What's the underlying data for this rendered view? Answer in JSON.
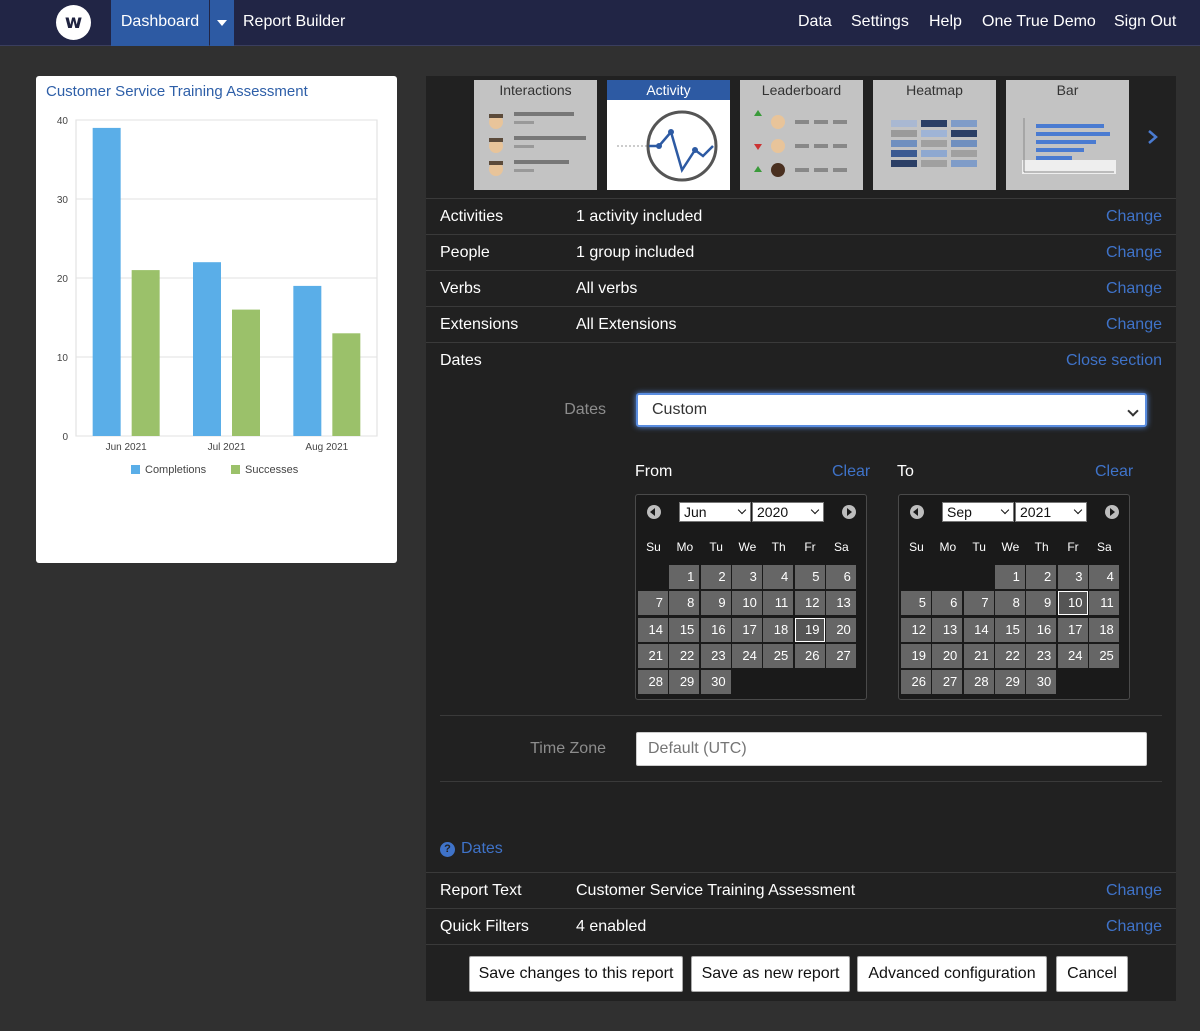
{
  "nav": {
    "logo_letter": "w",
    "dashboard": "Dashboard",
    "report_builder": "Report Builder",
    "right": [
      "Data",
      "Settings",
      "Help",
      "One True Demo",
      "Sign Out"
    ]
  },
  "card": {
    "title": "Customer Service Training Assessment"
  },
  "chart_data": {
    "type": "bar",
    "categories": [
      "Jun 2021",
      "Jul 2021",
      "Aug 2021"
    ],
    "series": [
      {
        "name": "Completions",
        "values": [
          39,
          22,
          19
        ],
        "color": "#5aaee8"
      },
      {
        "name": "Successes",
        "values": [
          21,
          16,
          13
        ],
        "color": "#9bc16a"
      }
    ],
    "ylim": [
      0,
      40
    ],
    "yticks": [
      0,
      10,
      20,
      30,
      40
    ],
    "grid": true,
    "legend": "bottom"
  },
  "thumbs": [
    {
      "label": "Interactions",
      "icon": "interactions-thumb",
      "active": false
    },
    {
      "label": "Activity",
      "icon": "activity-thumb",
      "active": true
    },
    {
      "label": "Leaderboard",
      "icon": "leaderboard-thumb",
      "active": false
    },
    {
      "label": "Heatmap",
      "icon": "heatmap-thumb",
      "active": false
    },
    {
      "label": "Bar",
      "icon": "bar-thumb",
      "active": false
    }
  ],
  "rows": {
    "activities": {
      "label": "Activities",
      "value": "1 activity included",
      "action": "Change"
    },
    "people": {
      "label": "People",
      "value": "1 group included",
      "action": "Change"
    },
    "verbs": {
      "label": "Verbs",
      "value": "All verbs",
      "action": "Change"
    },
    "extensions": {
      "label": "Extensions",
      "value": "All Extensions",
      "action": "Change"
    },
    "dates": {
      "label": "Dates",
      "action": "Close section"
    },
    "report_text": {
      "label": "Report Text",
      "value": "Customer Service Training Assessment",
      "action": "Change"
    },
    "quick_filters": {
      "label": "Quick Filters",
      "value": "4 enabled",
      "action": "Change"
    }
  },
  "dates": {
    "label": "Dates",
    "selected": "Custom",
    "from_label": "From",
    "to_label": "To",
    "clear": "Clear",
    "dow": [
      "Su",
      "Mo",
      "Tu",
      "We",
      "Th",
      "Fr",
      "Sa"
    ],
    "from": {
      "month": "Jun",
      "year": "2020",
      "first_weekday": 1,
      "days": 30,
      "today": 19
    },
    "to": {
      "month": "Sep",
      "year": "2021",
      "first_weekday": 3,
      "days": 30,
      "today": 10
    },
    "timezone_label": "Time Zone",
    "timezone_placeholder": "Default (UTC)",
    "help_link": "Dates",
    "help_icon": "question-circle-icon"
  },
  "buttons": {
    "save_changes": "Save changes to this report",
    "save_new": "Save as new report",
    "advanced": "Advanced configuration",
    "cancel": "Cancel"
  }
}
